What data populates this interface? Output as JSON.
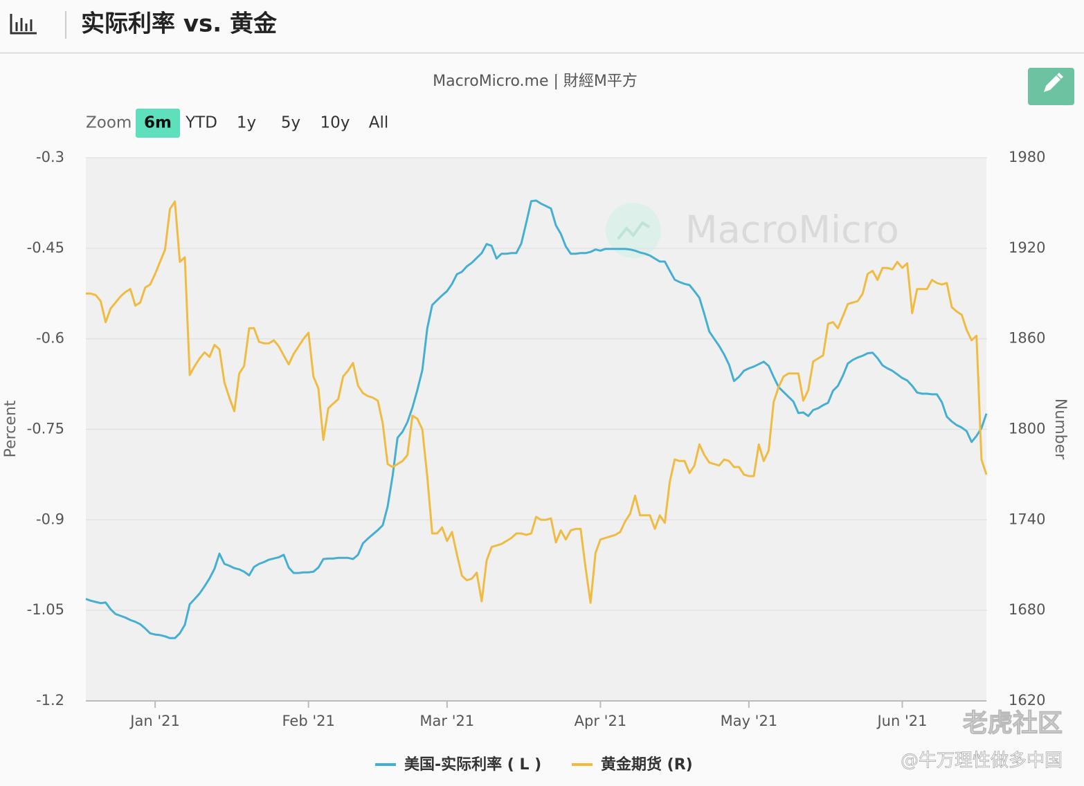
{
  "header": {
    "title": "实际利率 vs. 黄金"
  },
  "toolbar": {
    "zoom_label": "Zoom",
    "zoom_options": [
      "6m",
      "YTD",
      "1y",
      "5y",
      "10y",
      "All"
    ],
    "selected": "6m"
  },
  "chart_data": {
    "type": "line",
    "credit": "MacroMicro.me | 財經M平方",
    "watermark": "MacroMicro",
    "y_label": "Percent",
    "y2_label": "Number",
    "grid": true,
    "legend": "bottom",
    "categories": [
      null,
      null,
      null,
      null,
      null,
      null,
      null,
      null,
      null,
      null,
      null,
      null,
      null,
      null,
      "Jan '21",
      null,
      null,
      null,
      null,
      null,
      null,
      null,
      null,
      null,
      null,
      null,
      null,
      null,
      null,
      null,
      null,
      null,
      null,
      null,
      null,
      null,
      null,
      null,
      null,
      null,
      null,
      null,
      null,
      null,
      null,
      "Feb '21",
      null,
      null,
      null,
      null,
      null,
      null,
      null,
      null,
      null,
      null,
      null,
      null,
      null,
      null,
      null,
      null,
      null,
      null,
      null,
      null,
      null,
      null,
      null,
      null,
      null,
      null,
      null,
      "Mar '21",
      null,
      null,
      null,
      null,
      null,
      null,
      null,
      null,
      null,
      null,
      null,
      null,
      null,
      null,
      null,
      null,
      null,
      null,
      null,
      null,
      null,
      null,
      null,
      null,
      null,
      null,
      null,
      null,
      null,
      null,
      "Apr '21",
      null,
      null,
      null,
      null,
      null,
      null,
      null,
      null,
      null,
      null,
      null,
      null,
      null,
      null,
      null,
      null,
      null,
      null,
      null,
      null,
      null,
      null,
      null,
      null,
      null,
      null,
      null,
      null,
      null,
      "May '21",
      null,
      null,
      null,
      null,
      null,
      null,
      null,
      null,
      null,
      null,
      null,
      null,
      null,
      null,
      null,
      null,
      null,
      null,
      null,
      null,
      null,
      null,
      null,
      null,
      null,
      null,
      null,
      null,
      null,
      null,
      "Jun '21",
      null,
      null,
      null,
      null,
      null,
      null,
      null,
      null,
      null,
      null,
      null,
      null,
      null,
      null,
      null,
      null,
      null
    ],
    "ylim": [
      -1.2,
      -0.3
    ],
    "yticks": [
      -1.2,
      -1.05,
      -0.9,
      -0.75,
      -0.6,
      -0.45,
      -0.3
    ],
    "y2lim": [
      1620,
      1980
    ],
    "y2ticks": [
      1620,
      1680,
      1740,
      1800,
      1860,
      1920,
      1980
    ],
    "series": [
      {
        "name": "美国-实际利率 ( L )",
        "color": "#45afd3",
        "values": [
          -1.031,
          -1.034,
          -1.036,
          -1.038,
          -1.037,
          -1.048,
          -1.056,
          -1.059,
          -1.062,
          -1.066,
          -1.069,
          -1.073,
          -1.08,
          -1.088,
          -1.09,
          -1.091,
          -1.093,
          -1.096,
          -1.096,
          -1.088,
          -1.074,
          -1.04,
          -1.031,
          -1.022,
          -1.01,
          -0.997,
          -0.981,
          -0.956,
          -0.973,
          -0.976,
          -0.98,
          -0.982,
          -0.986,
          -0.992,
          -0.978,
          -0.973,
          -0.97,
          -0.966,
          -0.964,
          -0.962,
          -0.958,
          -0.979,
          -0.988,
          -0.988,
          -0.987,
          -0.987,
          -0.986,
          -0.979,
          -0.965,
          -0.964,
          -0.964,
          -0.963,
          -0.963,
          -0.963,
          -0.965,
          -0.958,
          -0.939,
          -0.931,
          -0.924,
          -0.917,
          -0.909,
          -0.878,
          -0.827,
          -0.764,
          -0.754,
          -0.738,
          -0.714,
          -0.685,
          -0.652,
          -0.583,
          -0.544,
          -0.536,
          -0.528,
          -0.521,
          -0.509,
          -0.493,
          -0.489,
          -0.48,
          -0.474,
          -0.466,
          -0.458,
          -0.443,
          -0.446,
          -0.467,
          -0.459,
          -0.459,
          -0.458,
          -0.458,
          -0.442,
          -0.408,
          -0.372,
          -0.371,
          -0.376,
          -0.38,
          -0.384,
          -0.412,
          -0.426,
          -0.447,
          -0.459,
          -0.459,
          -0.458,
          -0.458,
          -0.456,
          -0.452,
          -0.454,
          -0.451,
          -0.451,
          -0.451,
          -0.451,
          -0.451,
          -0.452,
          -0.454,
          -0.457,
          -0.459,
          -0.462,
          -0.467,
          -0.472,
          -0.472,
          -0.487,
          -0.502,
          -0.506,
          -0.509,
          -0.511,
          -0.521,
          -0.532,
          -0.559,
          -0.588,
          -0.6,
          -0.612,
          -0.626,
          -0.643,
          -0.67,
          -0.663,
          -0.653,
          -0.649,
          -0.646,
          -0.642,
          -0.638,
          -0.645,
          -0.663,
          -0.68,
          -0.688,
          -0.696,
          -0.704,
          -0.723,
          -0.722,
          -0.728,
          -0.718,
          -0.715,
          -0.71,
          -0.706,
          -0.686,
          -0.678,
          -0.661,
          -0.641,
          -0.635,
          -0.631,
          -0.628,
          -0.624,
          -0.623,
          -0.632,
          -0.644,
          -0.649,
          -0.653,
          -0.659,
          -0.665,
          -0.669,
          -0.678,
          -0.689,
          -0.691,
          -0.691,
          -0.692,
          -0.692,
          -0.705,
          -0.729,
          -0.737,
          -0.743,
          -0.747,
          -0.753,
          -0.771,
          -0.761,
          -0.748,
          -0.724
        ]
      },
      {
        "name": "黄金期货 (R)",
        "color": "#f0bb42",
        "axis": "y2",
        "values": [
          1890,
          1890,
          1889,
          1885,
          1871,
          1880,
          1884,
          1888,
          1891,
          1893,
          1882,
          1884,
          1894,
          1896,
          1903,
          1911,
          1919,
          1946,
          1951,
          1911,
          1914,
          1836,
          1842,
          1847,
          1851,
          1848,
          1856,
          1853,
          1831,
          1821,
          1812,
          1837,
          1842,
          1867,
          1867,
          1858,
          1857,
          1857,
          1859,
          1855,
          1849,
          1843,
          1850,
          1855,
          1860,
          1864,
          1835,
          1827,
          1793,
          1814,
          1817,
          1820,
          1835,
          1839,
          1844,
          1829,
          1824,
          1822,
          1821,
          1819,
          1804,
          1777,
          1775,
          1777,
          1779,
          1783,
          1809,
          1807,
          1800,
          1769,
          1731,
          1731,
          1735,
          1726,
          1732,
          1717,
          1703,
          1700,
          1701,
          1705,
          1686,
          1713,
          1722,
          1723,
          1724,
          1726,
          1728,
          1731,
          1731,
          1730,
          1731,
          1742,
          1740,
          1740,
          1741,
          1725,
          1733,
          1727,
          1733,
          1734,
          1734,
          1708,
          1685,
          1718,
          1727,
          1728,
          1729,
          1730,
          1732,
          1739,
          1744,
          1756,
          1743,
          1743,
          1743,
          1734,
          1743,
          1738,
          1765,
          1780,
          1779,
          1779,
          1771,
          1776,
          1790,
          1783,
          1778,
          1777,
          1776,
          1780,
          1779,
          1775,
          1775,
          1770,
          1769,
          1769,
          1790,
          1779,
          1786,
          1818,
          1828,
          1835,
          1837,
          1837,
          1837,
          1819,
          1826,
          1845,
          1847,
          1849,
          1870,
          1871,
          1867,
          1875,
          1883,
          1884,
          1885,
          1890,
          1903,
          1905,
          1899,
          1907,
          1907,
          1906,
          1911,
          1907,
          1910,
          1877,
          1893,
          1893,
          1893,
          1899,
          1897,
          1896,
          1897,
          1881,
          1878,
          1876,
          1866,
          1859,
          1862,
          1780,
          1770
        ]
      }
    ]
  },
  "watermarks": [
    "老虎社区",
    "@牛万理性做多中国"
  ]
}
